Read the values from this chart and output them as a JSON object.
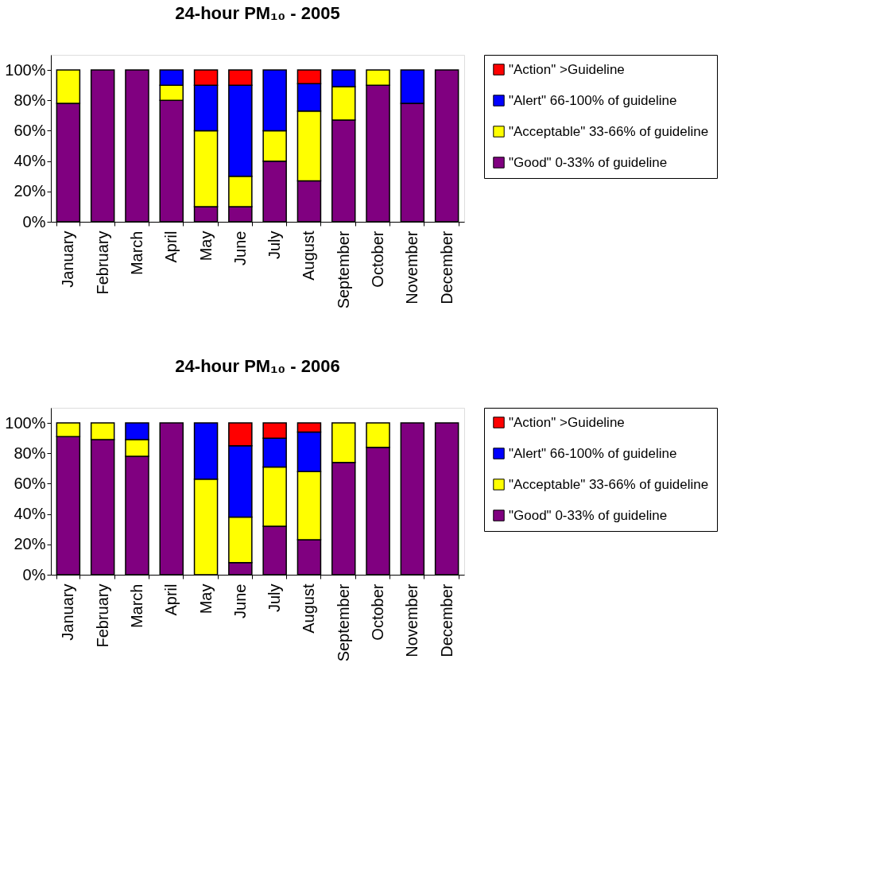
{
  "chart_data": [
    {
      "type": "bar",
      "title": "24-hour PM₁₀ - 2005",
      "stacked": true,
      "legend": "right",
      "grid": false,
      "categories": [
        "January",
        "February",
        "March",
        "April",
        "May",
        "June",
        "July",
        "August",
        "September",
        "October",
        "November",
        "December"
      ],
      "ylim": [
        0,
        110
      ],
      "yticks": [
        {
          "value": 0,
          "label": "0%"
        },
        {
          "value": 20,
          "label": "20%"
        },
        {
          "value": 40,
          "label": "40%"
        },
        {
          "value": 60,
          "label": "60%"
        },
        {
          "value": 80,
          "label": "80%"
        },
        {
          "value": 100,
          "label": "100%"
        }
      ],
      "series": [
        {
          "name": "\"Good\" 0-33% of guideline",
          "color": "#800080",
          "values": [
            78,
            100,
            100,
            80,
            10,
            10,
            40,
            27,
            67,
            90,
            78,
            100
          ]
        },
        {
          "name": "\"Acceptable\" 33-66% of guideline",
          "color": "#ffff00",
          "values": [
            22,
            0,
            0,
            10,
            50,
            20,
            20,
            46,
            22,
            10,
            0,
            0
          ]
        },
        {
          "name": "\"Alert\" 66-100% of guideline",
          "color": "#0000ff",
          "values": [
            0,
            0,
            0,
            10,
            30,
            60,
            40,
            18,
            11,
            0,
            22,
            0
          ]
        },
        {
          "name": "\"Action\" >Guideline",
          "color": "#ff0000",
          "values": [
            0,
            0,
            0,
            0,
            10,
            10,
            0,
            9,
            0,
            0,
            0,
            0
          ]
        }
      ]
    },
    {
      "type": "bar",
      "title": "24-hour PM₁₀ - 2006",
      "stacked": true,
      "legend": "right",
      "grid": false,
      "categories": [
        "January",
        "February",
        "March",
        "April",
        "May",
        "June",
        "July",
        "August",
        "September",
        "October",
        "November",
        "December"
      ],
      "ylim": [
        0,
        110
      ],
      "yticks": [
        {
          "value": 0,
          "label": "0%"
        },
        {
          "value": 20,
          "label": "20%"
        },
        {
          "value": 40,
          "label": "40%"
        },
        {
          "value": 60,
          "label": "60%"
        },
        {
          "value": 80,
          "label": "80%"
        },
        {
          "value": 100,
          "label": "100%"
        }
      ],
      "series": [
        {
          "name": "\"Good\" 0-33% of guideline",
          "color": "#800080",
          "values": [
            91,
            89,
            78,
            100,
            0,
            8,
            32,
            23,
            74,
            84,
            100,
            100
          ]
        },
        {
          "name": "\"Acceptable\" 33-66% of guideline",
          "color": "#ffff00",
          "values": [
            9,
            11,
            11,
            0,
            63,
            30,
            39,
            45,
            26,
            16,
            0,
            0
          ]
        },
        {
          "name": "\"Alert\" 66-100% of guideline",
          "color": "#0000ff",
          "values": [
            0,
            0,
            11,
            0,
            37,
            47,
            19,
            26,
            0,
            0,
            0,
            0
          ]
        },
        {
          "name": "\"Action\" >Guideline",
          "color": "#ff0000",
          "values": [
            0,
            0,
            0,
            0,
            0,
            15,
            10,
            6,
            0,
            0,
            0,
            0
          ]
        }
      ]
    }
  ]
}
